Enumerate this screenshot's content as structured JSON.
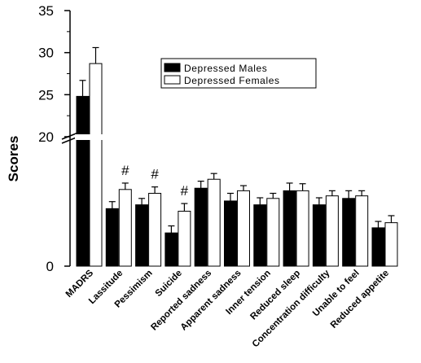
{
  "chart_data": {
    "type": "bar",
    "ylabel": "Scores",
    "y_axis_break": {
      "lower_range": [
        0,
        10
      ],
      "upper_range": [
        20,
        35
      ]
    },
    "y_tick_labels": [
      "0",
      "20",
      "25",
      "30",
      "35"
    ],
    "categories": [
      "MADRS",
      "Lassitude",
      "Pessimism",
      "Suicide",
      "Reported sadness",
      "Apparent sadness",
      "Inner tension",
      "Reduced sleep",
      "Concentration difficulty",
      "Unable to feel",
      "Reduced appetite"
    ],
    "series": [
      {
        "name": "Depressed Males",
        "color": "#000000",
        "values": [
          24.8,
          4.5,
          4.8,
          2.6,
          6.1,
          5.1,
          4.8,
          5.9,
          4.8,
          5.3,
          3.0
        ],
        "errors": [
          1.9,
          0.55,
          0.5,
          0.55,
          0.55,
          0.6,
          0.55,
          0.6,
          0.55,
          0.6,
          0.5
        ]
      },
      {
        "name": "Depressed Females",
        "color": "#ffffff",
        "values": [
          28.7,
          6.0,
          5.7,
          4.3,
          6.8,
          5.9,
          5.3,
          5.9,
          5.5,
          5.5,
          3.4
        ],
        "errors": [
          1.9,
          0.5,
          0.5,
          0.6,
          0.45,
          0.4,
          0.4,
          0.55,
          0.4,
          0.4,
          0.55
        ]
      }
    ],
    "annotations": [
      {
        "text": "#",
        "category": "Lassitude"
      },
      {
        "text": "#",
        "category": "Pessimism"
      },
      {
        "text": "#",
        "category": "Suicide"
      }
    ],
    "legend_position": "top-right",
    "grid": false
  }
}
